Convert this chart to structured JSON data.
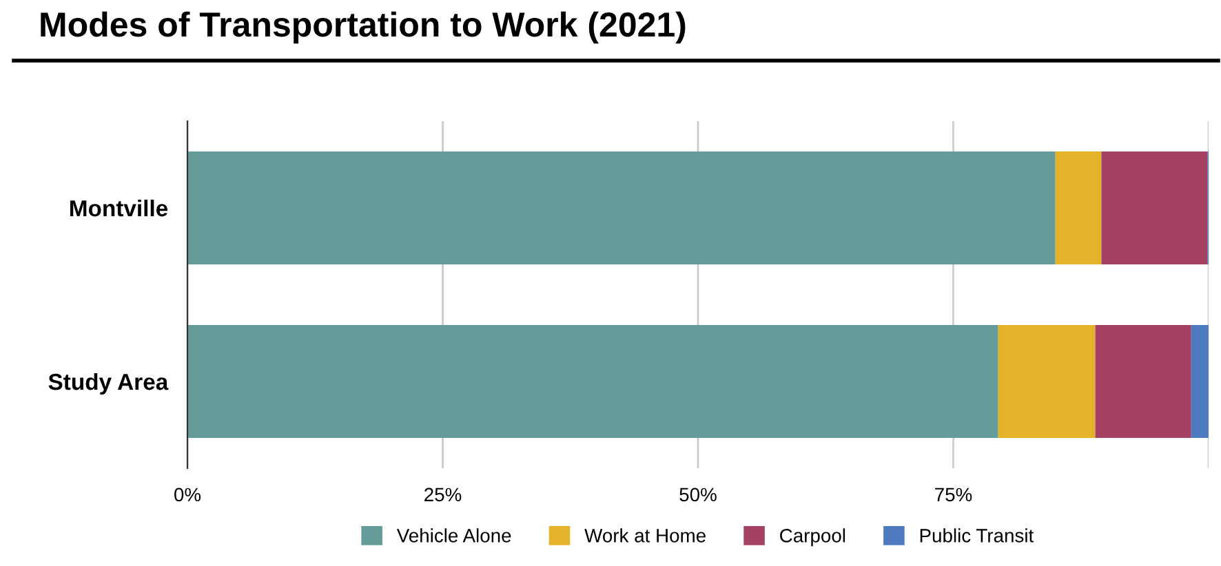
{
  "chart_data": {
    "type": "bar",
    "orientation": "horizontal",
    "stacked": true,
    "title": "Modes of Transportation to Work (2021)",
    "categories": [
      "Montville",
      "Study Area"
    ],
    "series": [
      {
        "name": "Vehicle Alone",
        "color": "#659c9a",
        "values": [
          85.0,
          79.4
        ]
      },
      {
        "name": "Work at Home",
        "color": "#e5b32b",
        "values": [
          4.5,
          9.5
        ]
      },
      {
        "name": "Carpool",
        "color": "#a54262",
        "values": [
          10.4,
          9.4
        ]
      },
      {
        "name": "Public Transit",
        "color": "#4e7bbf",
        "values": [
          0.1,
          1.7
        ]
      }
    ],
    "xlim": [
      0,
      100
    ],
    "xticks": [
      {
        "value": 0,
        "label": "0%"
      },
      {
        "value": 25,
        "label": "25%"
      },
      {
        "value": 50,
        "label": "50%"
      },
      {
        "value": 75,
        "label": "75%"
      },
      {
        "value": 100,
        "label": null
      }
    ],
    "grid": "x",
    "legend": "bottom"
  }
}
